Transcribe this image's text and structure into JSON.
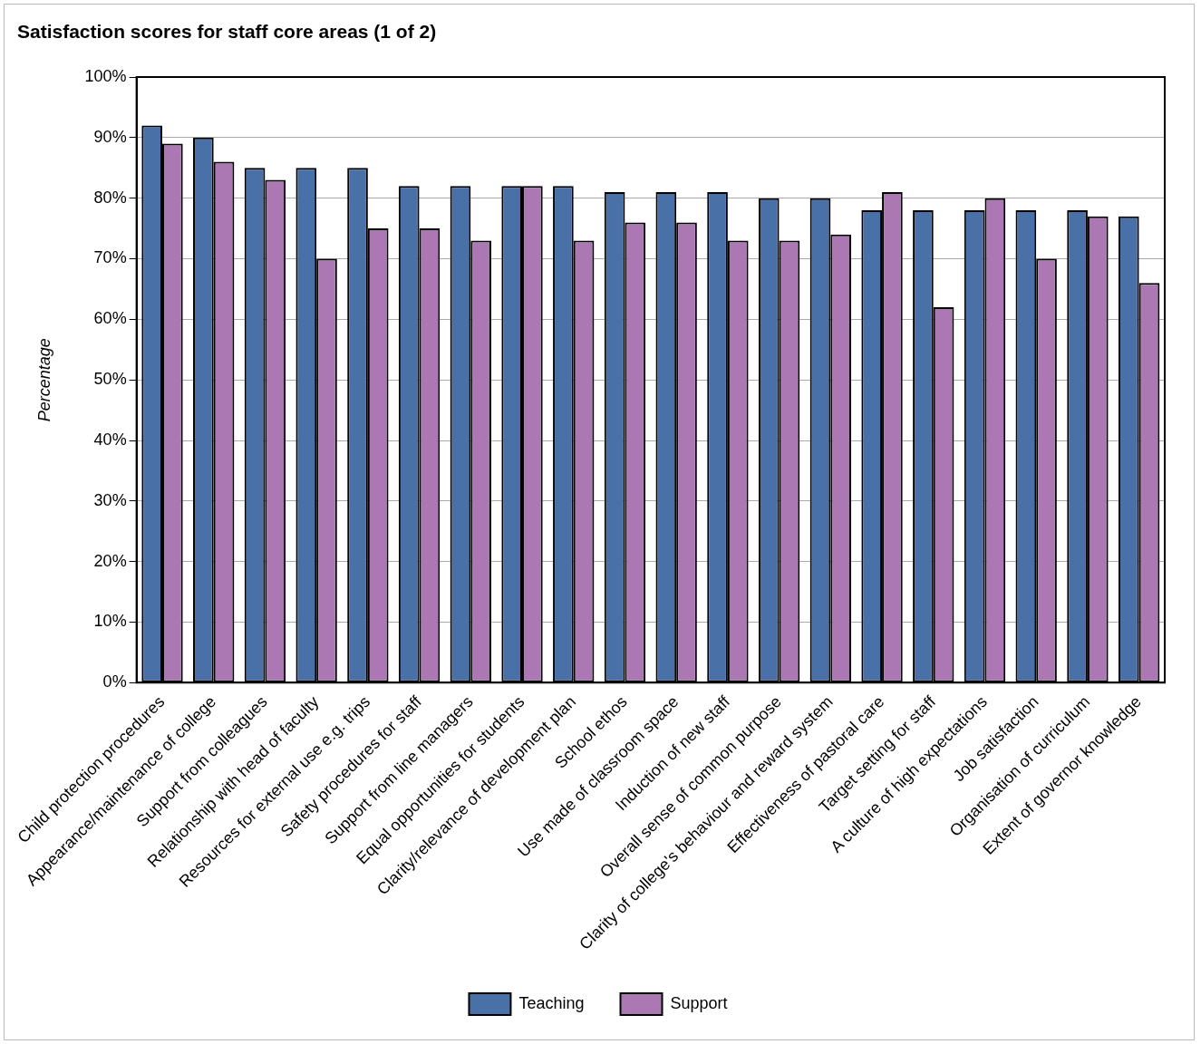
{
  "chart_data": {
    "type": "bar",
    "title": "Satisfaction scores for staff core areas (1 of 2)",
    "ylabel": "Percentage",
    "categories": [
      "Child protection procedures",
      "Appearance/maintenance of college",
      "Support from colleagues",
      "Relationship with head of faculty",
      "Resources for external use e.g. trips",
      "Safety procedures for staff",
      "Support from line managers",
      "Equal opportunities for students",
      "Clarity/relevance of development plan",
      "School ethos",
      "Use made of classroom space",
      "Induction of new staff",
      "Overall sense of common purpose",
      "Clarity of college's behaviour and reward system",
      "Effectiveness of pastoral care",
      "Target setting for staff",
      "A culture of high expectations",
      "Job satisfaction",
      "Organisation of curriculum",
      "Extent of governor knowledge"
    ],
    "series": [
      {
        "name": "Teaching",
        "color": "#4a70a8",
        "values": [
          92,
          90,
          85,
          85,
          85,
          82,
          82,
          82,
          82,
          81,
          81,
          81,
          80,
          80,
          78,
          78,
          78,
          78,
          78,
          77
        ]
      },
      {
        "name": "Support",
        "color": "#ab78b3",
        "values": [
          89,
          86,
          83,
          70,
          75,
          75,
          73,
          82,
          73,
          76,
          76,
          73,
          73,
          74,
          81,
          62,
          80,
          70,
          77,
          66
        ]
      }
    ],
    "ylim": [
      0,
      100
    ],
    "yticks": [
      {
        "value": 0,
        "label": "0%"
      },
      {
        "value": 10,
        "label": "10%"
      },
      {
        "value": 20,
        "label": "20%"
      },
      {
        "value": 30,
        "label": "30%"
      },
      {
        "value": 40,
        "label": "40%"
      },
      {
        "value": 50,
        "label": "50%"
      },
      {
        "value": 60,
        "label": "60%"
      },
      {
        "value": 70,
        "label": "70%"
      },
      {
        "value": 80,
        "label": "80%"
      },
      {
        "value": 90,
        "label": "90%"
      },
      {
        "value": 100,
        "label": "100%"
      }
    ],
    "grid": "y",
    "legend": "bottom"
  }
}
